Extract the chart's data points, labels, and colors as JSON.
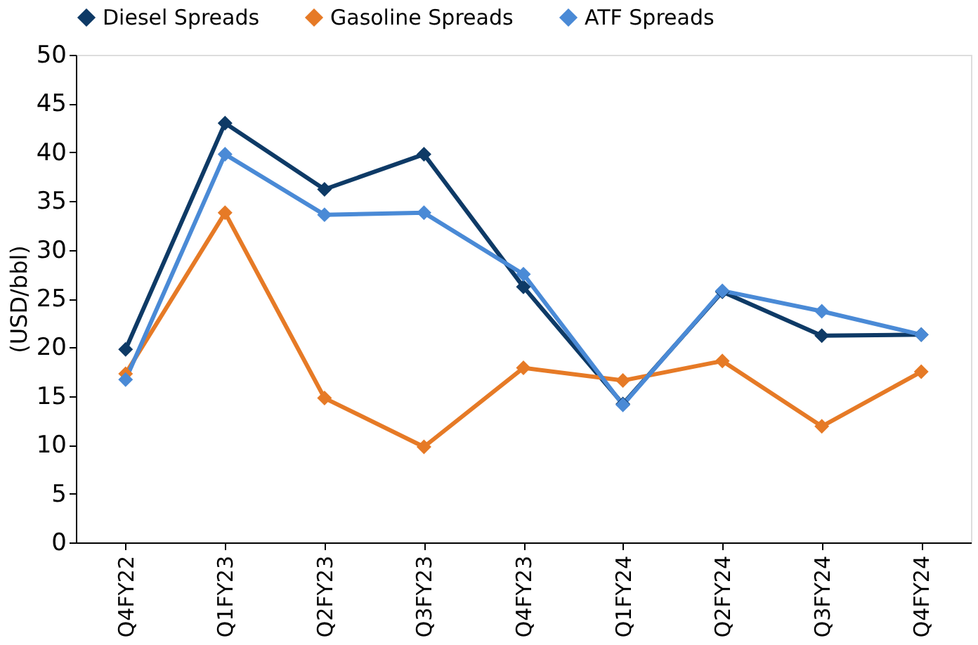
{
  "chart_data": {
    "type": "line",
    "ylabel": "(USD/bbl)",
    "categories": [
      "Q4FY22",
      "Q1FY23",
      "Q2FY23",
      "Q3FY23",
      "Q4FY23",
      "Q1FY24",
      "Q2FY24",
      "Q3FY24",
      "Q4FY24"
    ],
    "series": [
      {
        "name": "Diesel Spreads",
        "color": "#0e3a66",
        "values": [
          19.8,
          43.0,
          36.2,
          39.8,
          26.2,
          14.2,
          25.7,
          21.2,
          21.3
        ]
      },
      {
        "name": "Gasoline Spreads",
        "color": "#e67a26",
        "values": [
          17.3,
          33.8,
          14.8,
          9.8,
          17.9,
          16.6,
          18.6,
          11.9,
          17.5
        ]
      },
      {
        "name": "ATF Spreads",
        "color": "#4a8ad6",
        "values": [
          16.7,
          39.8,
          33.6,
          33.8,
          27.5,
          14.1,
          25.8,
          23.7,
          21.3
        ]
      }
    ],
    "ylim": [
      0,
      50
    ],
    "yticks": [
      0,
      5,
      10,
      15,
      20,
      25,
      30,
      35,
      40,
      45,
      50
    ],
    "grid": false,
    "legend": "top",
    "marker": "diamond",
    "line_style": "solid"
  }
}
